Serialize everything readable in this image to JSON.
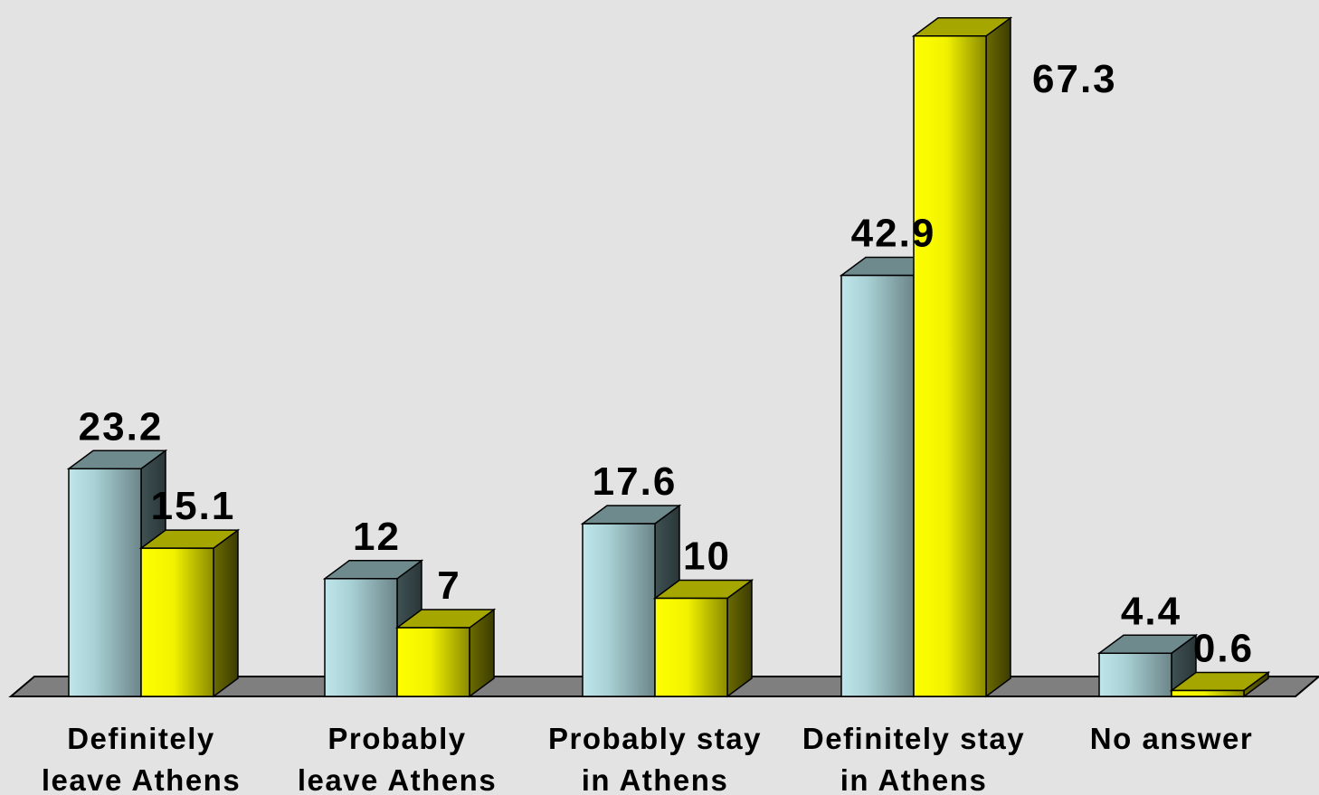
{
  "chart_data": {
    "type": "bar",
    "title": "",
    "xlabel": "",
    "ylabel": "",
    "ylim": [
      0,
      70
    ],
    "grid": false,
    "legend": "none",
    "three_d": true,
    "categories": [
      [
        "Definitely",
        "leave Athens"
      ],
      [
        "Probably",
        "leave Athens"
      ],
      [
        "Probably stay",
        "in Athens"
      ],
      [
        "Definitely stay",
        "in Athens"
      ],
      [
        "No answer"
      ]
    ],
    "series": [
      {
        "values": [
          23.2,
          12,
          17.6,
          42.9,
          4.4
        ],
        "labels": [
          "23.2",
          "12",
          "17.6",
          "42.9",
          "4.4"
        ],
        "color": "#b8dde0"
      },
      {
        "values": [
          15.1,
          7,
          10,
          67.3,
          0.6
        ],
        "labels": [
          "15.1",
          "7",
          "10",
          "67.3",
          "0.6"
        ],
        "color": "#ffff00"
      }
    ],
    "floor_color": "#7f7f7f",
    "background": "#e3e3e3"
  }
}
